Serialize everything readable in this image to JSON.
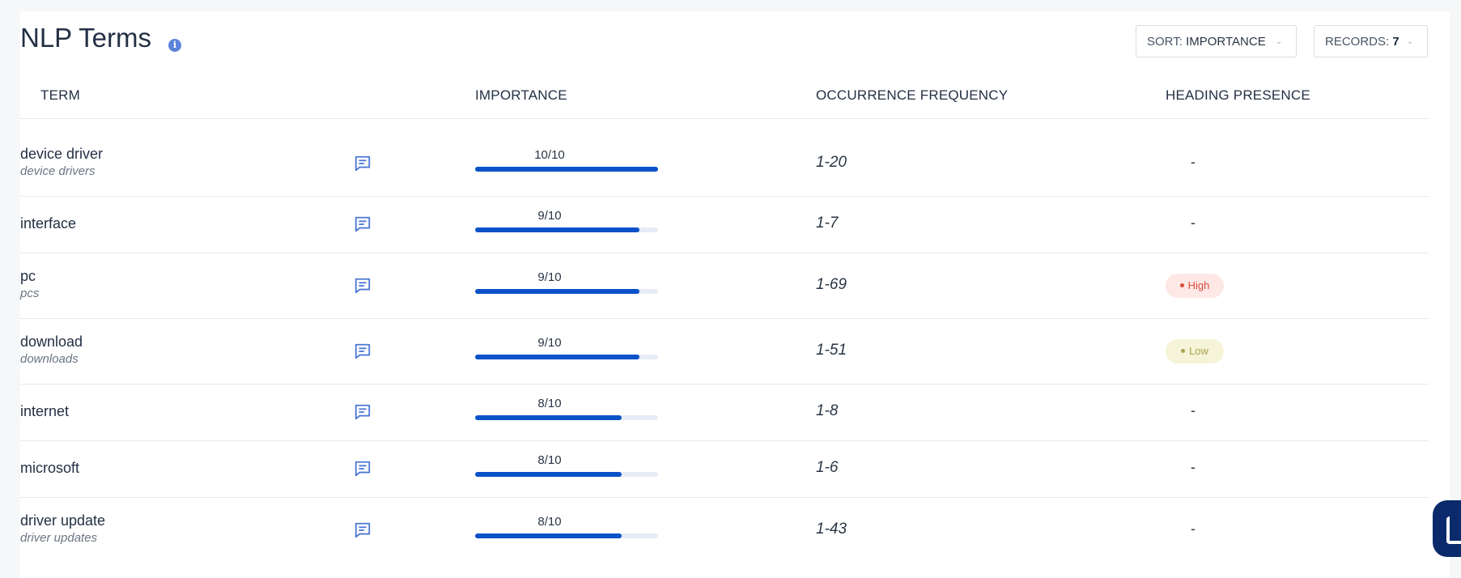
{
  "header": {
    "title": "NLP Terms",
    "info_icon": "info-icon",
    "sort": {
      "label": "SORT:",
      "value": "IMPORTANCE"
    },
    "records": {
      "label": "RECORDS:",
      "value": "7"
    }
  },
  "columns": {
    "term": "TERM",
    "importance": "IMPORTANCE",
    "frequency": "OCCURRENCE FREQUENCY",
    "heading": "HEADING PRESENCE"
  },
  "rows": [
    {
      "term": "device driver",
      "variant": "device drivers",
      "importance": "10/10",
      "importance_value": 10,
      "frequency": "1-20",
      "heading": "-"
    },
    {
      "term": "interface",
      "variant": "",
      "importance": "9/10",
      "importance_value": 9,
      "frequency": "1-7",
      "heading": "-"
    },
    {
      "term": "pc",
      "variant": "pcs",
      "importance": "9/10",
      "importance_value": 9,
      "frequency": "1-69",
      "heading": "High"
    },
    {
      "term": "download",
      "variant": "downloads",
      "importance": "9/10",
      "importance_value": 9,
      "frequency": "1-51",
      "heading": "Low"
    },
    {
      "term": "internet",
      "variant": "",
      "importance": "8/10",
      "importance_value": 8,
      "frequency": "1-8",
      "heading": "-"
    },
    {
      "term": "microsoft",
      "variant": "",
      "importance": "8/10",
      "importance_value": 8,
      "frequency": "1-6",
      "heading": "-"
    },
    {
      "term": "driver update",
      "variant": "driver updates",
      "importance": "8/10",
      "importance_value": 8,
      "frequency": "1-43",
      "heading": "-"
    }
  ],
  "colors": {
    "bar_fill": "#0b52c8",
    "bar_track": "#e6ecf6",
    "badge_high": "#d84a3d",
    "badge_low": "#a8a351",
    "chat_widget": "#0b2a6b"
  },
  "icons": {
    "comment": "comment-icon",
    "chat_widget": "chat-widget-icon"
  }
}
